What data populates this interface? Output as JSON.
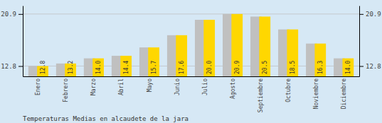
{
  "chart_data": {
    "type": "bar",
    "title": "Temperaturas Medias en alcaudete de la jara",
    "categories": [
      "Enero",
      "Febrero",
      "Marzo",
      "Abril",
      "Mayo",
      "Junio",
      "Julio",
      "Agosto",
      "Septiembre",
      "Octubre",
      "Noviembre",
      "Diciembre"
    ],
    "values": [
      12.8,
      13.2,
      14.0,
      14.4,
      15.7,
      17.6,
      20.0,
      20.9,
      20.5,
      18.5,
      16.3,
      14.0
    ],
    "value_labels": [
      "12.8",
      "13.2",
      "14.0",
      "14.4",
      "15.7",
      "17.6",
      "20.0",
      "20.9",
      "20.5",
      "18.5",
      "16.3",
      "14.0"
    ],
    "color": "#FFD700",
    "ylim": [
      11.2,
      22.2
    ],
    "yticks": [
      12.8,
      20.9
    ],
    "grid": true,
    "data_labels": true
  }
}
